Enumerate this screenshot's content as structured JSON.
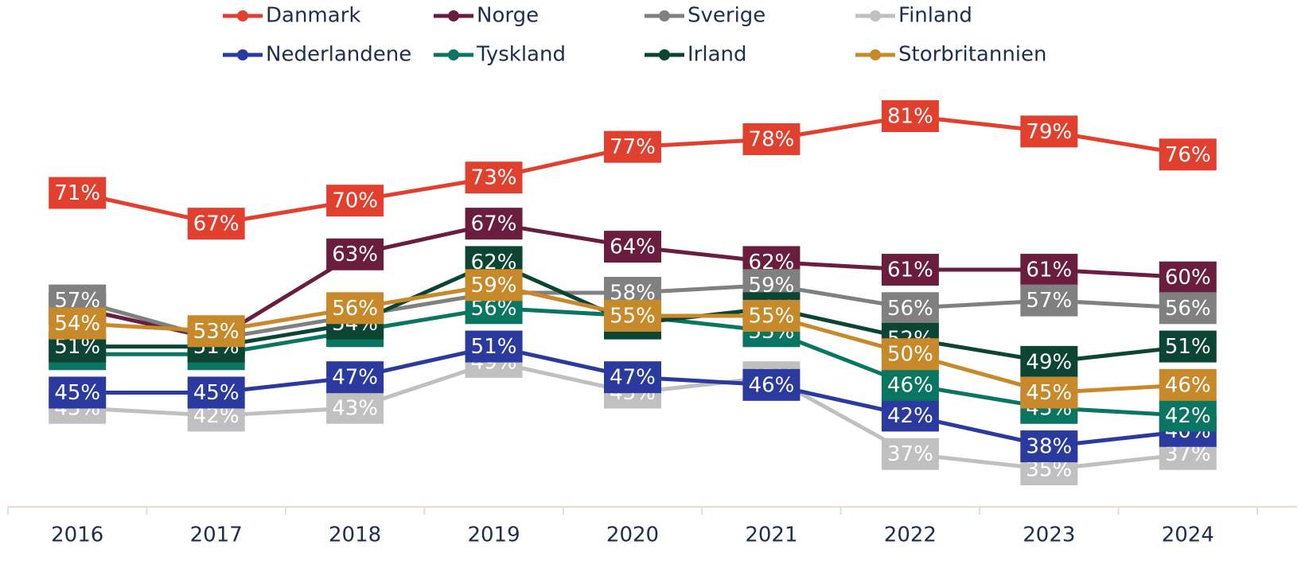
{
  "chart_data": {
    "type": "line",
    "categories": [
      "2016",
      "2017",
      "2018",
      "2019",
      "2020",
      "2021",
      "2022",
      "2023",
      "2024"
    ],
    "series": [
      {
        "name": "Danmark",
        "color": "#e2402f",
        "values": [
          71,
          67,
          70,
          73,
          77,
          78,
          81,
          79,
          76
        ],
        "value_labels": [
          "71%",
          "67%",
          "70%",
          "73%",
          "77%",
          "78%",
          "81%",
          "79%",
          "76%"
        ]
      },
      {
        "name": "Norge",
        "color": "#6b1d3f",
        "values": [
          56,
          52,
          63,
          67,
          64,
          62,
          61,
          61,
          60
        ],
        "value_labels": [
          "56%",
          "52%",
          "63%",
          "67%",
          "64%",
          "62%",
          "61%",
          "61%",
          "60%"
        ]
      },
      {
        "name": "Sverige",
        "color": "#808080",
        "values": [
          57,
          52,
          55,
          58,
          58,
          59,
          56,
          57,
          56
        ],
        "value_labels": [
          "57%",
          "52%",
          "55%",
          "58%",
          "58%",
          "59%",
          "56%",
          "57%",
          "56%"
        ]
      },
      {
        "name": "Finland",
        "color": "#c0c0c0",
        "values": [
          43,
          42,
          43,
          49,
          45,
          47,
          37,
          35,
          37
        ],
        "value_labels": [
          "43%",
          "42%",
          "43%",
          "49%",
          "45%",
          "47%",
          "37%",
          "35%",
          "37%"
        ]
      },
      {
        "name": "Nederlandene",
        "color": "#2a3a9e",
        "values": [
          45,
          45,
          47,
          51,
          47,
          46,
          42,
          38,
          40
        ],
        "value_labels": [
          "45%",
          "45%",
          "47%",
          "51%",
          "47%",
          "46%",
          "42%",
          "38%",
          "40%"
        ]
      },
      {
        "name": "Tyskland",
        "color": "#0a7560",
        "values": [
          50,
          50,
          53,
          56,
          55,
          53,
          46,
          43,
          42
        ],
        "value_labels": [
          "50%",
          "50%",
          "53%",
          "56%",
          "55%",
          "53%",
          "46%",
          "43%",
          "42%"
        ]
      },
      {
        "name": "Irland",
        "color": "#0d4535",
        "values": [
          51,
          51,
          54,
          62,
          54,
          56,
          52,
          49,
          51
        ],
        "value_labels": [
          "51%",
          "51%",
          "54%",
          "62%",
          "54%",
          "56%",
          "52%",
          "49%",
          "51%"
        ]
      },
      {
        "name": "Storbritannien",
        "color": "#c8892a",
        "values": [
          54,
          53,
          56,
          59,
          55,
          55,
          50,
          45,
          46
        ],
        "value_labels": [
          "54%",
          "53%",
          "56%",
          "59%",
          "55%",
          "55%",
          "50%",
          "45%",
          "46%"
        ]
      }
    ]
  }
}
